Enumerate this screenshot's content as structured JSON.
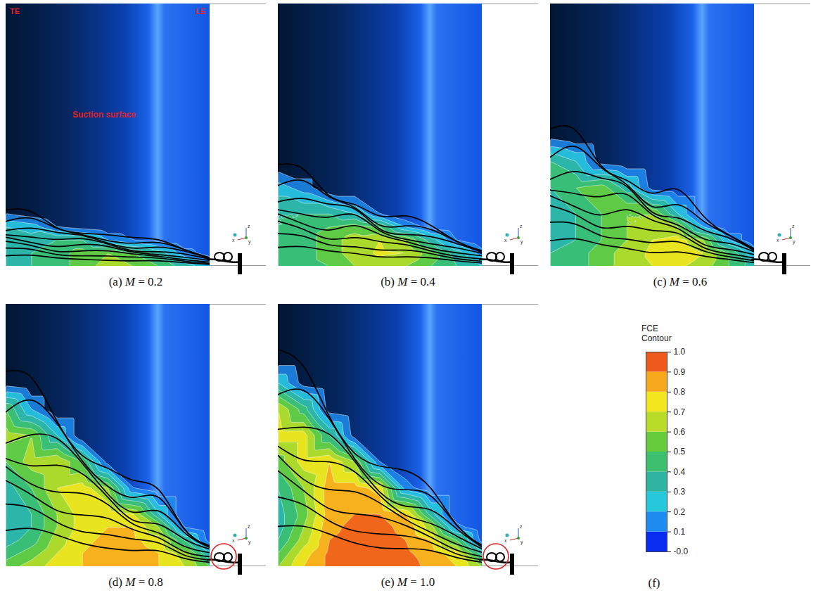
{
  "chart_data": {
    "type": "contour",
    "tick_labels": false,
    "xlim": [
      0,
      1
    ],
    "ylim": [
      0,
      1
    ],
    "x": [
      0,
      0.125,
      0.25,
      0.375,
      0.5,
      0.625,
      0.75,
      0.875,
      1
    ],
    "y": [
      0,
      0.05,
      0.1,
      0.15,
      0.2,
      0.3,
      0.4,
      0.5,
      0.6,
      0.7,
      0.8
    ],
    "annotations": [
      "TE",
      "LE",
      "Suction surface"
    ],
    "axis_triad": [
      "z",
      "x",
      "y"
    ],
    "panels": [
      {
        "caption": "(a) M = 0.2",
        "fce": [
          [
            0.35,
            0.4,
            0.45,
            0.55,
            0.65,
            0.6,
            0.5,
            0.35,
            0.25
          ],
          [
            0.35,
            0.4,
            0.45,
            0.55,
            0.6,
            0.5,
            0.35,
            0.15,
            0.05
          ],
          [
            0.35,
            0.35,
            0.4,
            0.4,
            0.2,
            0.1,
            0.05,
            0,
            0
          ],
          [
            0.3,
            0.25,
            0.1,
            0.05,
            0,
            0,
            0,
            0,
            0
          ],
          [
            0.1,
            0.05,
            0,
            0,
            0,
            0,
            0,
            0,
            0
          ],
          [
            0,
            0,
            0,
            0,
            0,
            0,
            0,
            0,
            0
          ],
          [
            0,
            0,
            0,
            0,
            0,
            0,
            0,
            0,
            0
          ],
          [
            0,
            0,
            0,
            0,
            0,
            0,
            0,
            0,
            0
          ],
          [
            0,
            0,
            0,
            0,
            0,
            0,
            0,
            0,
            0
          ],
          [
            0,
            0,
            0,
            0,
            0,
            0,
            0,
            0,
            0
          ],
          [
            0,
            0,
            0,
            0,
            0,
            0,
            0,
            0,
            0
          ]
        ]
      },
      {
        "caption": "(b) M = 0.4",
        "fce": [
          [
            0.4,
            0.45,
            0.5,
            0.6,
            0.65,
            0.6,
            0.5,
            0.4,
            0.3
          ],
          [
            0.4,
            0.45,
            0.55,
            0.65,
            0.72,
            0.7,
            0.55,
            0.35,
            0.15
          ],
          [
            0.4,
            0.45,
            0.55,
            0.65,
            0.7,
            0.6,
            0.35,
            0.1,
            0
          ],
          [
            0.4,
            0.45,
            0.5,
            0.55,
            0.5,
            0.2,
            0.05,
            0,
            0
          ],
          [
            0.4,
            0.4,
            0.4,
            0.3,
            0.1,
            0,
            0,
            0,
            0
          ],
          [
            0.25,
            0.15,
            0,
            0,
            0,
            0,
            0,
            0,
            0
          ],
          [
            0,
            0,
            0,
            0,
            0,
            0,
            0,
            0,
            0
          ],
          [
            0,
            0,
            0,
            0,
            0,
            0,
            0,
            0,
            0
          ],
          [
            0,
            0,
            0,
            0,
            0,
            0,
            0,
            0,
            0
          ],
          [
            0,
            0,
            0,
            0,
            0,
            0,
            0,
            0,
            0
          ],
          [
            0,
            0,
            0,
            0,
            0,
            0,
            0,
            0,
            0
          ]
        ]
      },
      {
        "caption": "(c) M = 0.6",
        "fce": [
          [
            0.4,
            0.45,
            0.55,
            0.65,
            0.7,
            0.72,
            0.65,
            0.5,
            0.35
          ],
          [
            0.4,
            0.45,
            0.55,
            0.65,
            0.72,
            0.78,
            0.7,
            0.5,
            0.2
          ],
          [
            0.35,
            0.4,
            0.5,
            0.6,
            0.7,
            0.75,
            0.6,
            0.2,
            0
          ],
          [
            0.35,
            0.4,
            0.5,
            0.6,
            0.68,
            0.6,
            0.2,
            0,
            0
          ],
          [
            0.35,
            0.4,
            0.5,
            0.6,
            0.6,
            0.3,
            0,
            0,
            0
          ],
          [
            0.4,
            0.5,
            0.55,
            0.35,
            0.05,
            0,
            0,
            0,
            0
          ],
          [
            0.4,
            0.3,
            0.05,
            0,
            0,
            0,
            0,
            0,
            0
          ],
          [
            0.05,
            0,
            0,
            0,
            0,
            0,
            0,
            0,
            0
          ],
          [
            0,
            0,
            0,
            0,
            0,
            0,
            0,
            0,
            0
          ],
          [
            0,
            0,
            0,
            0,
            0,
            0,
            0,
            0,
            0
          ],
          [
            0,
            0,
            0,
            0,
            0,
            0,
            0,
            0,
            0
          ]
        ]
      },
      {
        "caption": "(d) M = 0.8",
        "fce": [
          [
            0.55,
            0.65,
            0.75,
            0.8,
            0.85,
            0.85,
            0.8,
            0.7,
            0.5
          ],
          [
            0.45,
            0.55,
            0.7,
            0.8,
            0.85,
            0.85,
            0.8,
            0.65,
            0.3
          ],
          [
            0.35,
            0.45,
            0.65,
            0.78,
            0.82,
            0.82,
            0.75,
            0.4,
            0.05
          ],
          [
            0.3,
            0.4,
            0.6,
            0.75,
            0.8,
            0.8,
            0.6,
            0.1,
            0
          ],
          [
            0.3,
            0.4,
            0.6,
            0.75,
            0.78,
            0.7,
            0.3,
            0,
            0
          ],
          [
            0.35,
            0.5,
            0.7,
            0.75,
            0.6,
            0.1,
            0,
            0,
            0
          ],
          [
            0.5,
            0.65,
            0.7,
            0.5,
            0.05,
            0,
            0,
            0,
            0
          ],
          [
            0.65,
            0.6,
            0.3,
            0,
            0,
            0,
            0,
            0,
            0
          ],
          [
            0.5,
            0.2,
            0,
            0,
            0,
            0,
            0,
            0,
            0
          ],
          [
            0.05,
            0,
            0,
            0,
            0,
            0,
            0,
            0,
            0
          ],
          [
            0,
            0,
            0,
            0,
            0,
            0,
            0,
            0,
            0
          ]
        ]
      },
      {
        "caption": "(e) M = 1.0",
        "fce": [
          [
            0.6,
            0.8,
            0.92,
            0.95,
            0.95,
            0.93,
            0.88,
            0.8,
            0.6
          ],
          [
            0.5,
            0.75,
            0.92,
            0.95,
            0.95,
            0.92,
            0.85,
            0.75,
            0.35
          ],
          [
            0.4,
            0.65,
            0.9,
            0.93,
            0.93,
            0.9,
            0.8,
            0.5,
            0.05
          ],
          [
            0.35,
            0.6,
            0.88,
            0.92,
            0.92,
            0.88,
            0.65,
            0.15,
            0
          ],
          [
            0.35,
            0.55,
            0.85,
            0.9,
            0.9,
            0.8,
            0.35,
            0,
            0
          ],
          [
            0.4,
            0.6,
            0.85,
            0.85,
            0.75,
            0.15,
            0,
            0,
            0
          ],
          [
            0.55,
            0.75,
            0.8,
            0.6,
            0.1,
            0,
            0,
            0,
            0
          ],
          [
            0.75,
            0.75,
            0.4,
            0.05,
            0,
            0,
            0,
            0,
            0
          ],
          [
            0.7,
            0.45,
            0.05,
            0,
            0,
            0,
            0,
            0,
            0
          ],
          [
            0.3,
            0.05,
            0,
            0,
            0,
            0,
            0,
            0,
            0
          ],
          [
            0,
            0,
            0,
            0,
            0,
            0,
            0,
            0,
            0
          ]
        ]
      }
    ],
    "colorbar": {
      "title": "FCE Contour",
      "caption": "(f)",
      "range": [
        0,
        1
      ],
      "ticks": [
        {
          "value": 0,
          "label": "-0.0"
        },
        0.1,
        0.2,
        0.3,
        0.4,
        0.5,
        0.6,
        0.7,
        0.8,
        0.9,
        {
          "value": 1,
          "label": "1.0"
        }
      ],
      "colors": [
        "#0a2cf0",
        "#1e8cf0",
        "#28c8dc",
        "#2eb4a0",
        "#3cc070",
        "#66cc3c",
        "#b8dc28",
        "#f2e61e",
        "#f8a81c",
        "#ee5a1c"
      ]
    }
  }
}
